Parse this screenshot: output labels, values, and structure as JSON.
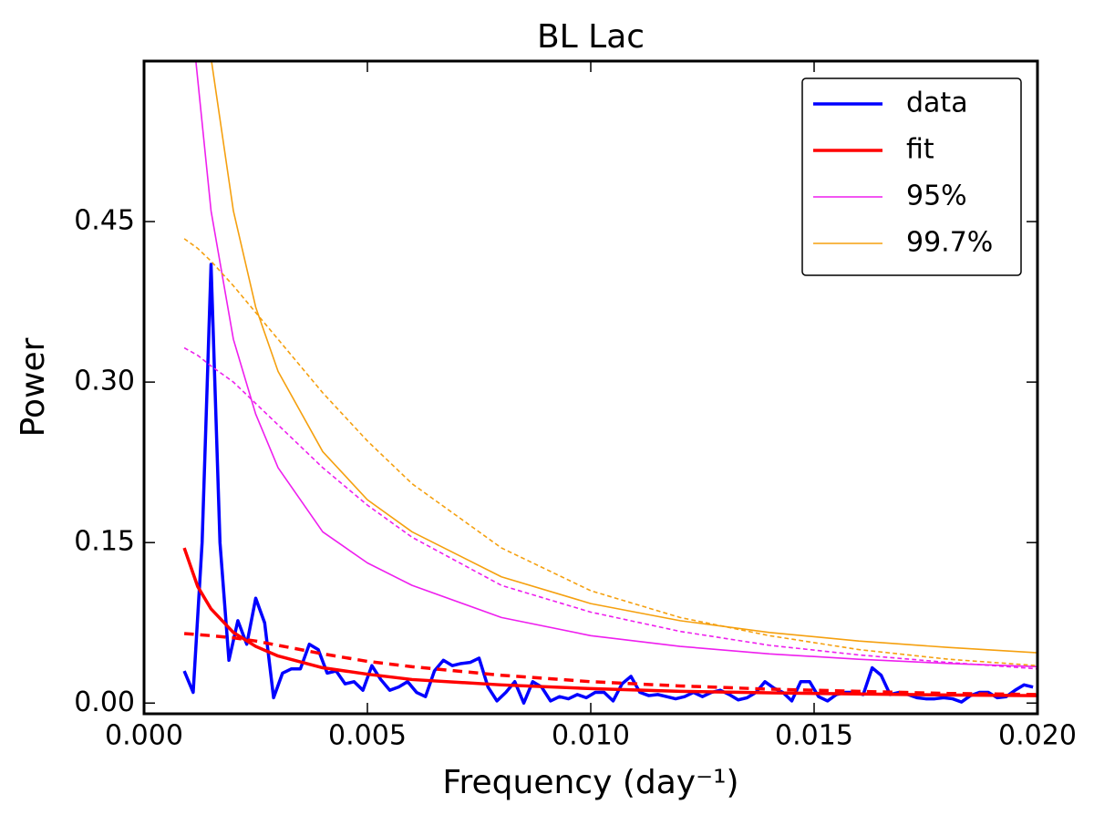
{
  "chart_data": {
    "type": "line",
    "title": "BL Lac",
    "xlabel": "Frequency (day⁻¹)",
    "ylabel": "Power",
    "xlim": [
      0,
      0.02
    ],
    "ylim": [
      -0.01,
      0.6
    ],
    "xticks": [
      {
        "value": 0,
        "label": "0.000"
      },
      {
        "value": 0.005,
        "label": "0.005"
      },
      {
        "value": 0.01,
        "label": "0.010"
      },
      {
        "value": 0.015,
        "label": "0.015"
      },
      {
        "value": 0.02,
        "label": "0.020"
      }
    ],
    "yticks": [
      {
        "value": 0,
        "label": "0.00"
      },
      0.15,
      {
        "value": 0.3,
        "label": "0.30"
      },
      0.45
    ],
    "legend": "upper right",
    "series": [
      {
        "name": "data",
        "color": "#0000ff",
        "linewidth": 3.5,
        "linestyle": "solid",
        "x": [
          0.0009,
          0.0011,
          0.0013,
          0.0015,
          0.0017,
          0.0019,
          0.0021,
          0.0023,
          0.0025,
          0.0027,
          0.0029,
          0.0031,
          0.0033,
          0.0035,
          0.0037,
          0.0039,
          0.0041,
          0.0043,
          0.0045,
          0.0047,
          0.0049,
          0.0051,
          0.0053,
          0.0055,
          0.0057,
          0.0059,
          0.0061,
          0.0063,
          0.0065,
          0.0067,
          0.0069,
          0.0071,
          0.0073,
          0.0075,
          0.0077,
          0.0079,
          0.0081,
          0.0083,
          0.0085,
          0.0087,
          0.0089,
          0.0091,
          0.0093,
          0.0095,
          0.0097,
          0.0099,
          0.0101,
          0.0103,
          0.0105,
          0.0107,
          0.0109,
          0.0111,
          0.0113,
          0.0115,
          0.0117,
          0.0119,
          0.0121,
          0.0123,
          0.0125,
          0.0127,
          0.0129,
          0.0131,
          0.0133,
          0.0135,
          0.0137,
          0.0139,
          0.0141,
          0.0143,
          0.0145,
          0.0147,
          0.0149,
          0.0151,
          0.0153,
          0.0155,
          0.0157,
          0.0159,
          0.0161,
          0.0163,
          0.0165,
          0.0167,
          0.0169,
          0.0171,
          0.0173,
          0.0175,
          0.0177,
          0.0179,
          0.0181,
          0.0183,
          0.0185,
          0.0187,
          0.0189,
          0.0191,
          0.0193,
          0.0195,
          0.0197,
          0.0199
        ],
        "values": [
          0.03,
          0.01,
          0.15,
          0.41,
          0.15,
          0.04,
          0.077,
          0.055,
          0.098,
          0.075,
          0.005,
          0.028,
          0.032,
          0.032,
          0.055,
          0.05,
          0.028,
          0.03,
          0.018,
          0.02,
          0.012,
          0.035,
          0.022,
          0.012,
          0.015,
          0.02,
          0.01,
          0.006,
          0.03,
          0.04,
          0.035,
          0.037,
          0.038,
          0.042,
          0.015,
          0.002,
          0.01,
          0.02,
          0.0,
          0.02,
          0.015,
          0.002,
          0.006,
          0.004,
          0.008,
          0.005,
          0.01,
          0.01,
          0.002,
          0.018,
          0.025,
          0.01,
          0.007,
          0.008,
          0.006,
          0.004,
          0.006,
          0.01,
          0.006,
          0.01,
          0.012,
          0.008,
          0.003,
          0.005,
          0.01,
          0.02,
          0.014,
          0.01,
          0.002,
          0.02,
          0.02,
          0.006,
          0.002,
          0.008,
          0.01,
          0.01,
          0.008,
          0.033,
          0.026,
          0.008,
          0.01,
          0.008,
          0.005,
          0.004,
          0.004,
          0.005,
          0.004,
          0.001,
          0.007,
          0.01,
          0.01,
          0.005,
          0.006,
          0.012,
          0.017,
          0.015
        ]
      },
      {
        "name": "fit",
        "color": "#ff0000",
        "linewidth": 3.5,
        "linestyle": "solid",
        "x": [
          0.0009,
          0.0012,
          0.0015,
          0.002,
          0.0025,
          0.003,
          0.004,
          0.005,
          0.006,
          0.008,
          0.01,
          0.012,
          0.014,
          0.016,
          0.018,
          0.02
        ],
        "values": [
          0.145,
          0.109,
          0.088,
          0.066,
          0.053,
          0.044,
          0.033,
          0.027,
          0.022,
          0.017,
          0.0135,
          0.011,
          0.0096,
          0.0085,
          0.0076,
          0.0069
        ]
      },
      {
        "color": "#ff0000",
        "linewidth": 3.5,
        "linestyle": "dashed",
        "x": [
          0.0009,
          0.0012,
          0.0015,
          0.002,
          0.0025,
          0.003,
          0.004,
          0.005,
          0.006,
          0.008,
          0.01,
          0.012,
          0.014,
          0.016,
          0.018,
          0.02
        ],
        "values": [
          0.065,
          0.064,
          0.063,
          0.061,
          0.058,
          0.054,
          0.046,
          0.039,
          0.034,
          0.026,
          0.02,
          0.016,
          0.013,
          0.011,
          0.009,
          0.008
        ]
      },
      {
        "name": "95%",
        "color": "#ee1fee",
        "linewidth": 1.6,
        "linestyle": "solid",
        "x": [
          0.00116,
          0.0015,
          0.002,
          0.0025,
          0.003,
          0.004,
          0.005,
          0.006,
          0.008,
          0.01,
          0.012,
          0.014,
          0.016,
          0.018,
          0.02
        ],
        "values": [
          0.6,
          0.46,
          0.34,
          0.27,
          0.22,
          0.16,
          0.131,
          0.11,
          0.08,
          0.063,
          0.053,
          0.046,
          0.041,
          0.037,
          0.034
        ]
      },
      {
        "color": "#ee1fee",
        "linewidth": 1.6,
        "linestyle": "dashed",
        "x": [
          0.0009,
          0.0012,
          0.0015,
          0.002,
          0.0025,
          0.003,
          0.004,
          0.005,
          0.006,
          0.008,
          0.01,
          0.012,
          0.014,
          0.016,
          0.018,
          0.02
        ],
        "values": [
          0.332,
          0.325,
          0.315,
          0.3,
          0.28,
          0.26,
          0.22,
          0.185,
          0.155,
          0.11,
          0.085,
          0.067,
          0.054,
          0.045,
          0.038,
          0.032
        ]
      },
      {
        "name": "99.7%",
        "color": "#f5a00f",
        "linewidth": 1.6,
        "linestyle": "solid",
        "x": [
          0.00151,
          0.002,
          0.0025,
          0.003,
          0.004,
          0.005,
          0.006,
          0.008,
          0.01,
          0.012,
          0.014,
          0.016,
          0.018,
          0.02
        ],
        "values": [
          0.6,
          0.46,
          0.37,
          0.31,
          0.235,
          0.19,
          0.16,
          0.118,
          0.093,
          0.077,
          0.066,
          0.058,
          0.052,
          0.047
        ]
      },
      {
        "color": "#f5a00f",
        "linewidth": 1.6,
        "linestyle": "dashed",
        "x": [
          0.0009,
          0.0012,
          0.0015,
          0.002,
          0.0025,
          0.003,
          0.004,
          0.005,
          0.006,
          0.008,
          0.01,
          0.012,
          0.014,
          0.016,
          0.018,
          0.02
        ],
        "values": [
          0.434,
          0.425,
          0.413,
          0.39,
          0.365,
          0.34,
          0.29,
          0.245,
          0.205,
          0.145,
          0.105,
          0.08,
          0.063,
          0.05,
          0.041,
          0.035
        ]
      }
    ]
  }
}
